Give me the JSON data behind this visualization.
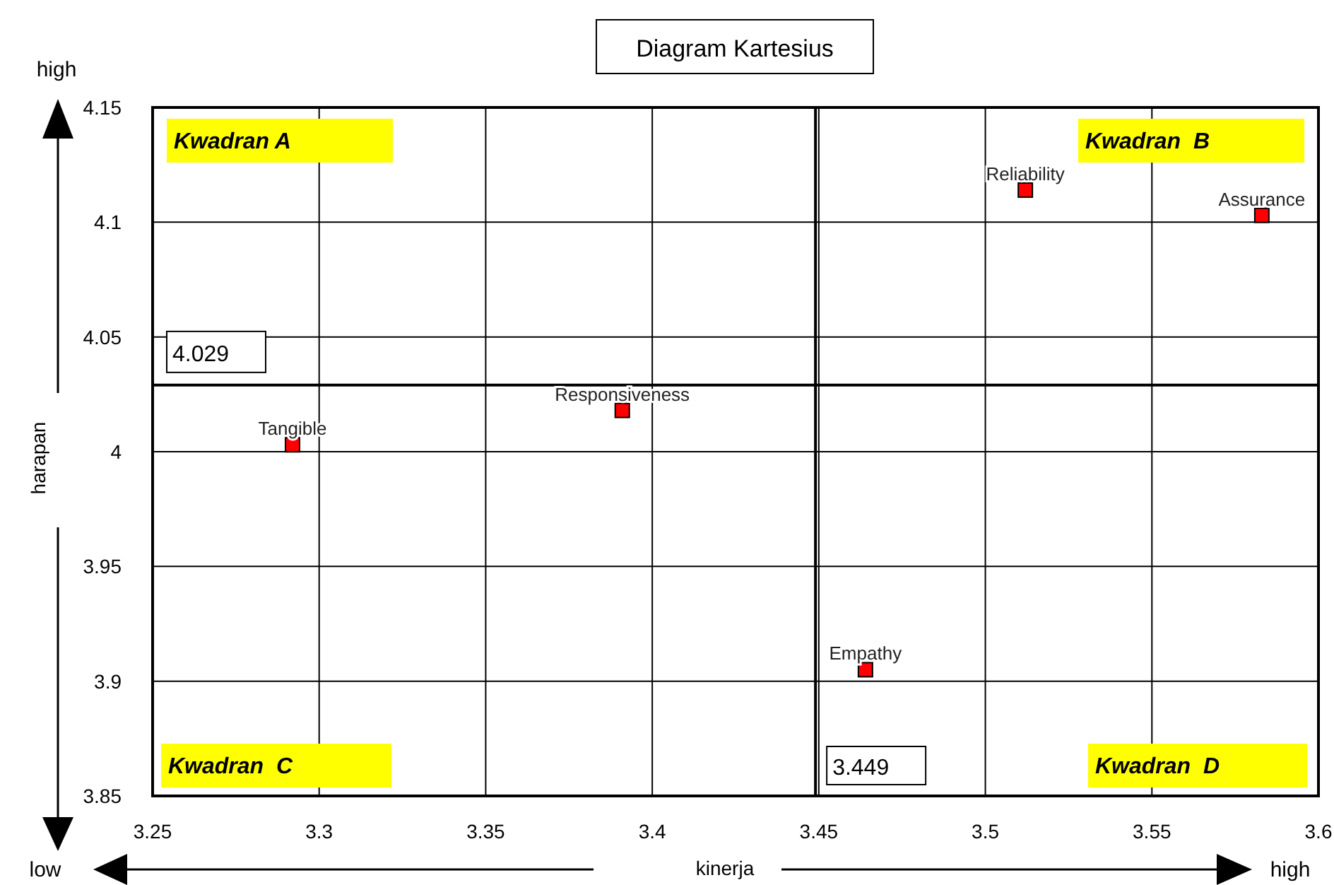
{
  "chart_data": {
    "type": "scatter",
    "title": "Diagram Kartesius",
    "xlabel": "kinerja",
    "ylabel": "harapan",
    "x": [
      3.292,
      3.391,
      3.464,
      3.512,
      3.583
    ],
    "series": [
      {
        "color": "#ff0000",
        "values": [
          4.003,
          4.018,
          3.905,
          4.114,
          4.103
        ]
      }
    ],
    "marker": "square",
    "grid": true,
    "xlim": [
      3.25,
      3.6
    ],
    "xticks": [
      3.25,
      3.3,
      3.35,
      3.4,
      3.45,
      3.5,
      3.55,
      3.6
    ],
    "ylim": [
      3.85,
      4.15
    ],
    "yticks": [
      3.85,
      3.9,
      3.95,
      4,
      4.05,
      4.1,
      4.15
    ],
    "ref_lines": [
      {
        "axis": "x",
        "value": 3.449,
        "label": "3.449"
      },
      {
        "axis": "y",
        "value": 4.029,
        "label": "4.029"
      }
    ],
    "annotations": [
      "Kwadran A",
      "Kwadran  B",
      "Kwadran  C",
      "Kwadran  D",
      "high",
      "low",
      "high",
      {
        "text": "Tangible",
        "x": 3.292,
        "y": 4.003
      },
      {
        "text": "Responsiveness",
        "x": 3.391,
        "y": 4.018
      },
      {
        "text": "Empathy",
        "x": 3.464,
        "y": 3.905
      },
      {
        "text": "Reliability",
        "x": 3.512,
        "y": 4.114
      },
      {
        "text": "Assurance",
        "x": 3.583,
        "y": 4.103
      }
    ]
  }
}
